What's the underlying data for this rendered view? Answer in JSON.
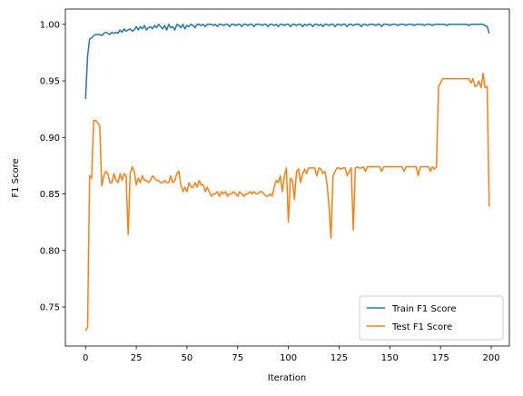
{
  "chart_data": {
    "type": "line",
    "xlabel": "Iteration",
    "ylabel": "F1 Score",
    "x": [
      0,
      1,
      2,
      3,
      4,
      5,
      6,
      7,
      8,
      9,
      10,
      11,
      12,
      13,
      14,
      15,
      16,
      17,
      18,
      19,
      20,
      21,
      22,
      23,
      24,
      25,
      26,
      27,
      28,
      29,
      30,
      31,
      32,
      33,
      34,
      35,
      36,
      37,
      38,
      39,
      40,
      41,
      42,
      43,
      44,
      45,
      46,
      47,
      48,
      49,
      50,
      51,
      52,
      53,
      54,
      55,
      56,
      57,
      58,
      59,
      60,
      61,
      62,
      63,
      64,
      65,
      66,
      67,
      68,
      69,
      70,
      71,
      72,
      73,
      74,
      75,
      76,
      77,
      78,
      79,
      80,
      81,
      82,
      83,
      84,
      85,
      86,
      87,
      88,
      89,
      90,
      91,
      92,
      93,
      94,
      95,
      96,
      97,
      98,
      99,
      100,
      101,
      102,
      103,
      104,
      105,
      106,
      107,
      108,
      109,
      110,
      111,
      112,
      113,
      114,
      115,
      116,
      117,
      118,
      119,
      120,
      121,
      122,
      123,
      124,
      125,
      126,
      127,
      128,
      129,
      130,
      131,
      132,
      133,
      134,
      135,
      136,
      137,
      138,
      139,
      140,
      141,
      142,
      143,
      144,
      145,
      146,
      147,
      148,
      149,
      150,
      151,
      152,
      153,
      154,
      155,
      156,
      157,
      158,
      159,
      160,
      161,
      162,
      163,
      164,
      165,
      166,
      167,
      168,
      169,
      170,
      171,
      172,
      173,
      174,
      175,
      176,
      177,
      178,
      179,
      180,
      181,
      182,
      183,
      184,
      185,
      186,
      187,
      188,
      189,
      190,
      191,
      192,
      193,
      194,
      195,
      196,
      197,
      198,
      199
    ],
    "series": [
      {
        "name": "Train F1 Score",
        "color": "#1f77b4",
        "values": [
          0.934,
          0.972,
          0.987,
          0.988,
          0.99,
          0.991,
          0.991,
          0.991,
          0.99,
          0.992,
          0.993,
          0.992,
          0.991,
          0.993,
          0.992,
          0.993,
          0.992,
          0.995,
          0.993,
          0.996,
          0.994,
          0.995,
          0.996,
          0.994,
          0.995,
          0.998,
          0.995,
          0.998,
          0.996,
          0.999,
          0.995,
          0.997,
          0.998,
          0.996,
          0.999,
          0.997,
          1.0,
          0.998,
          0.996,
          0.999,
          0.995,
          1.0,
          0.997,
          0.998,
          0.995,
          1.0,
          0.999,
          0.997,
          1.0,
          0.996,
          0.999,
          0.998,
          1.0,
          0.999,
          0.997,
          1.0,
          1.0,
          0.999,
          1.0,
          0.998,
          1.0,
          1.0,
          1.0,
          0.999,
          1.0,
          0.998,
          1.0,
          1.0,
          0.999,
          1.0,
          1.0,
          0.998,
          1.0,
          1.0,
          0.999,
          1.0,
          1.0,
          0.998,
          1.0,
          1.0,
          0.999,
          1.0,
          1.0,
          0.998,
          1.0,
          1.0,
          1.0,
          0.999,
          1.0,
          1.0,
          0.998,
          1.0,
          1.0,
          0.999,
          1.0,
          0.998,
          1.0,
          1.0,
          0.999,
          1.0,
          1.0,
          0.998,
          1.0,
          1.0,
          0.999,
          1.0,
          1.0,
          0.998,
          1.0,
          0.999,
          1.0,
          1.0,
          0.998,
          1.0,
          1.0,
          0.999,
          1.0,
          0.998,
          1.0,
          1.0,
          0.999,
          1.0,
          1.0,
          0.998,
          1.0,
          1.0,
          0.999,
          1.0,
          1.0,
          0.998,
          1.0,
          1.0,
          0.999,
          1.0,
          1.0,
          1.0,
          0.998,
          1.0,
          1.0,
          0.999,
          1.0,
          1.0,
          1.0,
          0.999,
          1.0,
          1.0,
          0.998,
          1.0,
          1.0,
          1.0,
          0.999,
          1.0,
          1.0,
          1.0,
          0.999,
          1.0,
          1.0,
          1.0,
          0.999,
          1.0,
          1.0,
          1.0,
          0.999,
          1.0,
          1.0,
          1.0,
          1.0,
          0.999,
          1.0,
          1.0,
          1.0,
          0.999,
          1.0,
          1.0,
          1.0,
          1.0,
          1.0,
          1.0,
          0.999,
          1.0,
          1.0,
          1.0,
          1.0,
          1.0,
          1.0,
          1.0,
          1.0,
          1.0,
          1.0,
          0.999,
          1.0,
          1.0,
          1.0,
          1.0,
          1.0,
          1.0,
          1.0,
          0.999,
          0.998,
          0.992
        ]
      },
      {
        "name": "Test F1 Score",
        "color": "#ff7f0e",
        "values": [
          0.729,
          0.732,
          0.866,
          0.864,
          0.915,
          0.915,
          0.913,
          0.91,
          0.857,
          0.866,
          0.87,
          0.868,
          0.86,
          0.86,
          0.868,
          0.862,
          0.86,
          0.868,
          0.862,
          0.868,
          0.866,
          0.814,
          0.868,
          0.874,
          0.87,
          0.858,
          0.864,
          0.86,
          0.866,
          0.862,
          0.862,
          0.86,
          0.862,
          0.866,
          0.864,
          0.862,
          0.862,
          0.86,
          0.86,
          0.862,
          0.86,
          0.86,
          0.866,
          0.86,
          0.862,
          0.868,
          0.87,
          0.858,
          0.852,
          0.856,
          0.852,
          0.86,
          0.856,
          0.856,
          0.86,
          0.856,
          0.862,
          0.858,
          0.858,
          0.852,
          0.856,
          0.852,
          0.848,
          0.85,
          0.85,
          0.852,
          0.848,
          0.852,
          0.85,
          0.852,
          0.848,
          0.85,
          0.85,
          0.852,
          0.85,
          0.848,
          0.852,
          0.85,
          0.848,
          0.85,
          0.85,
          0.852,
          0.85,
          0.852,
          0.85,
          0.85,
          0.852,
          0.852,
          0.85,
          0.848,
          0.848,
          0.85,
          0.848,
          0.856,
          0.862,
          0.86,
          0.866,
          0.852,
          0.866,
          0.873,
          0.825,
          0.864,
          0.862,
          0.845,
          0.87,
          0.872,
          0.86,
          0.868,
          0.872,
          0.868,
          0.873,
          0.873,
          0.873,
          0.873,
          0.866,
          0.873,
          0.872,
          0.868,
          0.87,
          0.86,
          0.84,
          0.811,
          0.866,
          0.87,
          0.873,
          0.873,
          0.872,
          0.873,
          0.873,
          0.866,
          0.87,
          0.873,
          0.818,
          0.873,
          0.874,
          0.873,
          0.873,
          0.874,
          0.87,
          0.874,
          0.874,
          0.874,
          0.874,
          0.874,
          0.874,
          0.874,
          0.87,
          0.874,
          0.874,
          0.874,
          0.874,
          0.874,
          0.874,
          0.874,
          0.874,
          0.874,
          0.874,
          0.87,
          0.874,
          0.874,
          0.874,
          0.874,
          0.874,
          0.874,
          0.866,
          0.874,
          0.874,
          0.874,
          0.874,
          0.874,
          0.87,
          0.874,
          0.872,
          0.874,
          0.945,
          0.948,
          0.952,
          0.952,
          0.952,
          0.952,
          0.952,
          0.952,
          0.952,
          0.952,
          0.952,
          0.952,
          0.952,
          0.952,
          0.952,
          0.952,
          0.948,
          0.952,
          0.945,
          0.946,
          0.95,
          0.944,
          0.957,
          0.944,
          0.945,
          0.839
        ]
      }
    ],
    "xlim": [
      -9.95,
      208.95
    ],
    "xticks": [
      0,
      25,
      50,
      75,
      100,
      125,
      150,
      175,
      200
    ],
    "ylim": [
      0.7155,
      1.0135
    ],
    "yticks": [
      0.75,
      {
        "value": 0.8,
        "label": "0.80"
      },
      0.85,
      {
        "value": 0.9,
        "label": "0.90"
      },
      0.95,
      {
        "value": 1.0,
        "label": "1.00"
      }
    ],
    "legend": "lower right"
  }
}
